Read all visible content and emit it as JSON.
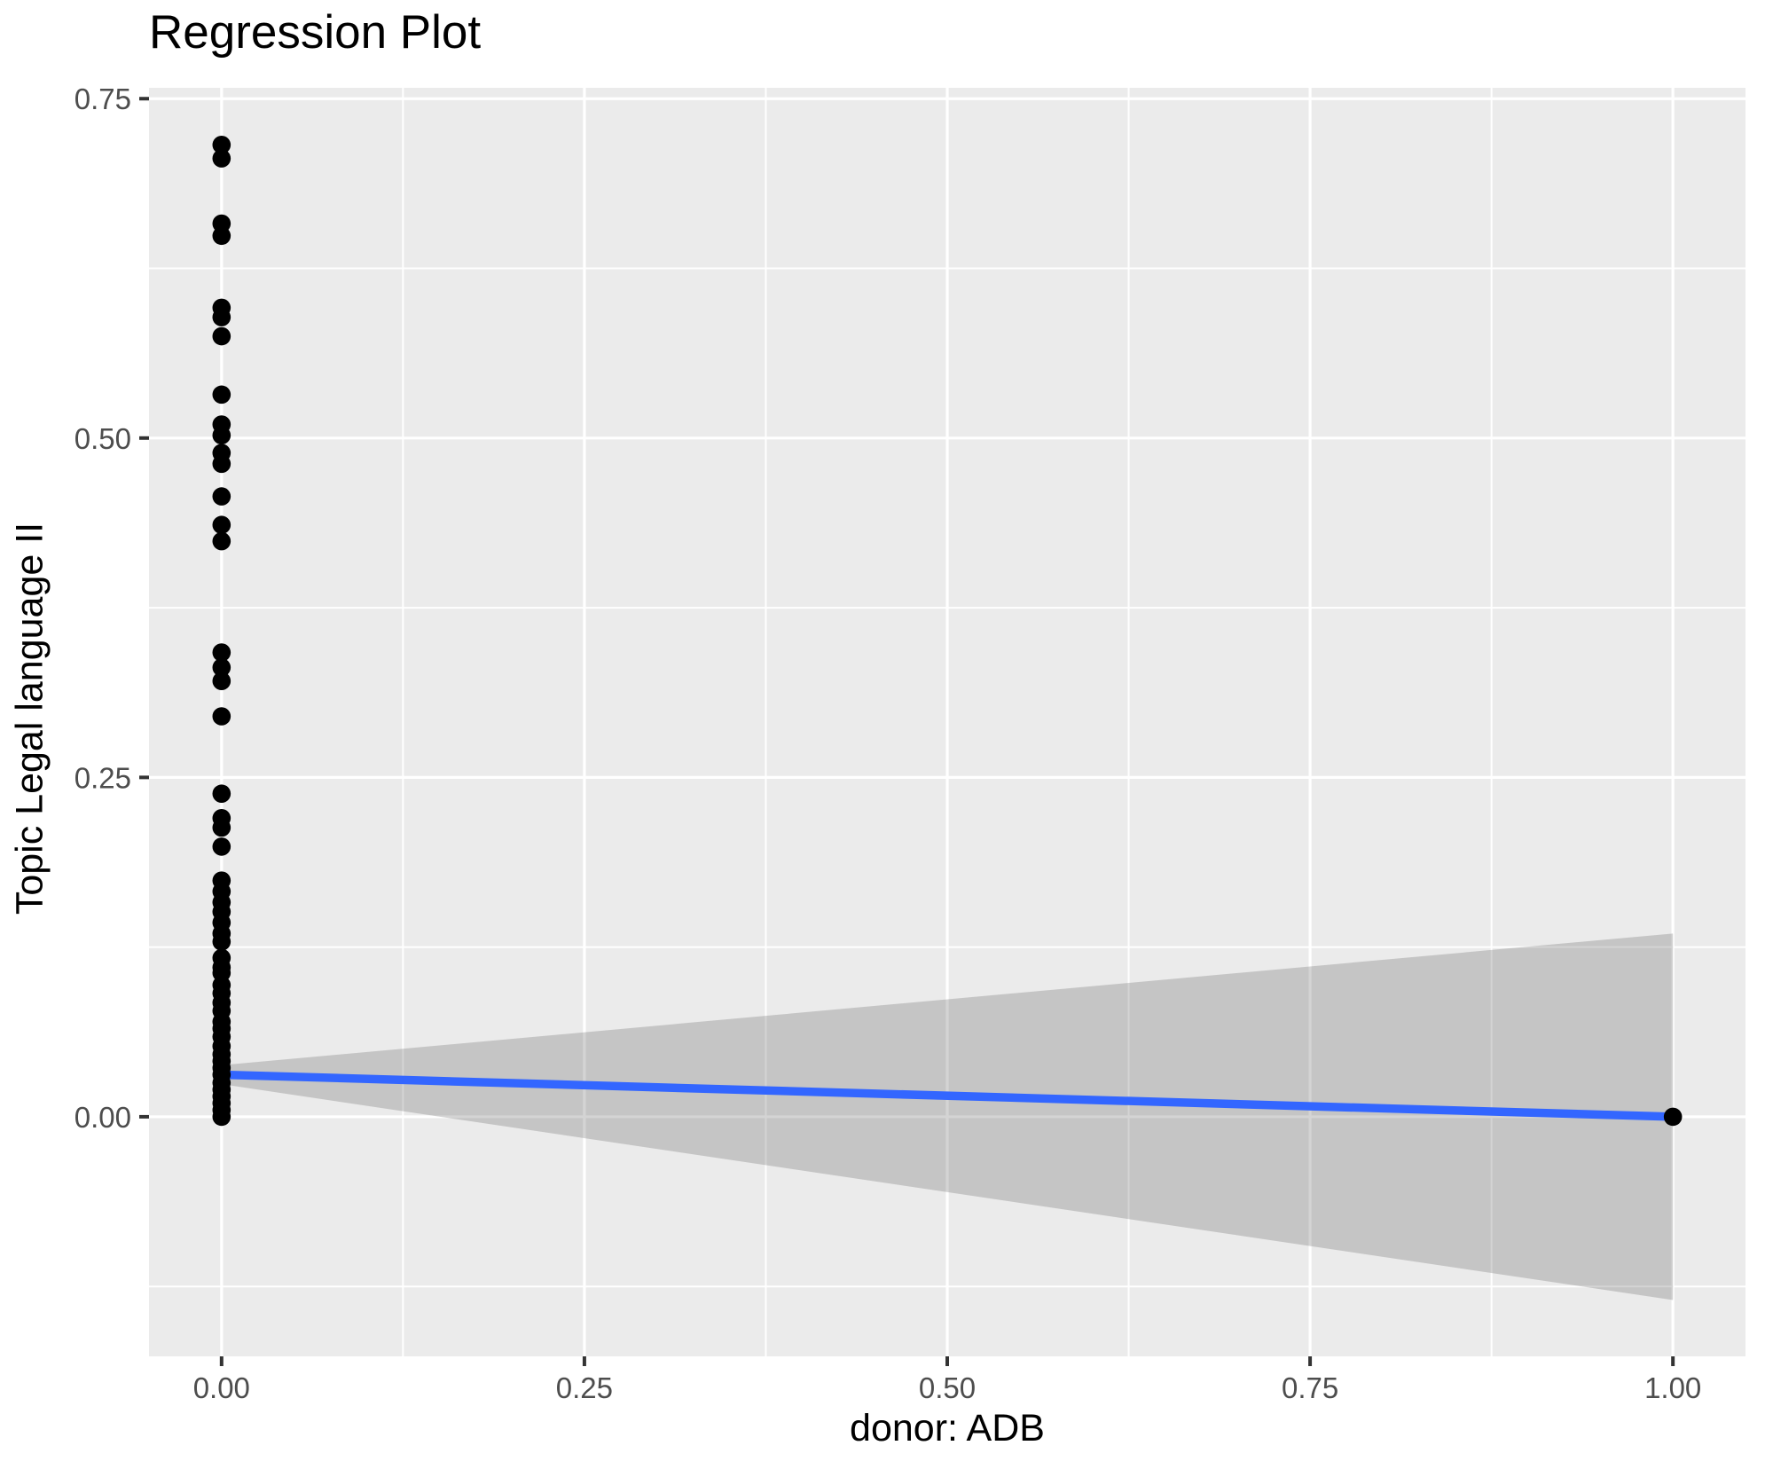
{
  "chart_data": {
    "type": "scatter",
    "title": "Regression Plot",
    "xlabel": "donor: ADB",
    "ylabel": "Topic Legal language II",
    "x_domain": [
      -0.05,
      1.05
    ],
    "y_domain": [
      -0.1765,
      0.758
    ],
    "x_tick_values": [
      0,
      0.25,
      0.5,
      0.75,
      1
    ],
    "x_tick_labels": [
      "0.00",
      "0.25",
      "0.50",
      "0.75",
      "1.00"
    ],
    "y_tick_values": [
      0,
      0.25,
      0.5,
      0.75
    ],
    "y_tick_labels": [
      "0.00",
      "0.25",
      "0.50",
      "0.75"
    ],
    "x_minor_values": [
      0.125,
      0.375,
      0.625,
      0.875
    ],
    "y_minor_values": [
      -0.125,
      0.125,
      0.375,
      0.625
    ],
    "grid": "on",
    "legend": "none",
    "points": [
      [
        0,
        0.716
      ],
      [
        0,
        0.706
      ],
      [
        0,
        0.658
      ],
      [
        0,
        0.649
      ],
      [
        0,
        0.596
      ],
      [
        0,
        0.589
      ],
      [
        0,
        0.575
      ],
      [
        0,
        0.532
      ],
      [
        0,
        0.51
      ],
      [
        0,
        0.502
      ],
      [
        0,
        0.489
      ],
      [
        0,
        0.481
      ],
      [
        0,
        0.457
      ],
      [
        0,
        0.436
      ],
      [
        0,
        0.424
      ],
      [
        0,
        0.342
      ],
      [
        0,
        0.331
      ],
      [
        0,
        0.321
      ],
      [
        0,
        0.295
      ],
      [
        0,
        0.238
      ],
      [
        0,
        0.22
      ],
      [
        0,
        0.213
      ],
      [
        0,
        0.199
      ],
      [
        0,
        0.174
      ],
      [
        0,
        0.166
      ],
      [
        0,
        0.158
      ],
      [
        0,
        0.151
      ],
      [
        0,
        0.143
      ],
      [
        0,
        0.135
      ],
      [
        0,
        0.129
      ],
      [
        0,
        0.117
      ],
      [
        0,
        0.11
      ],
      [
        0,
        0.106
      ],
      [
        0,
        0.097
      ],
      [
        0,
        0.091
      ],
      [
        0,
        0.084
      ],
      [
        0,
        0.078
      ],
      [
        0,
        0.07
      ],
      [
        0,
        0.065
      ],
      [
        0,
        0.059
      ],
      [
        0,
        0.052
      ],
      [
        0,
        0.046
      ],
      [
        0,
        0.041
      ],
      [
        0,
        0.036
      ],
      [
        0,
        0.031
      ],
      [
        0,
        0.025
      ],
      [
        0,
        0.02
      ],
      [
        0,
        0.015
      ],
      [
        0,
        0.01
      ],
      [
        0,
        0.005
      ],
      [
        0,
        0.0
      ],
      [
        1,
        0.0
      ]
    ],
    "regression_line": {
      "x": [
        0,
        1
      ],
      "y": [
        0.031,
        0.0
      ]
    },
    "confidence_band": {
      "x": [
        0,
        1
      ],
      "upper": [
        0.038,
        0.135
      ],
      "lower": [
        0.024,
        -0.135
      ]
    },
    "colors": {
      "panel_background": "#EBEBEB",
      "gridline": "#FFFFFF",
      "point": "#000000",
      "line": "#3366FF",
      "band": "rgba(95,95,95,0.27)",
      "tick_label": "#4D4D4D",
      "tick_mark": "#333333",
      "title_text": "#000000"
    }
  }
}
